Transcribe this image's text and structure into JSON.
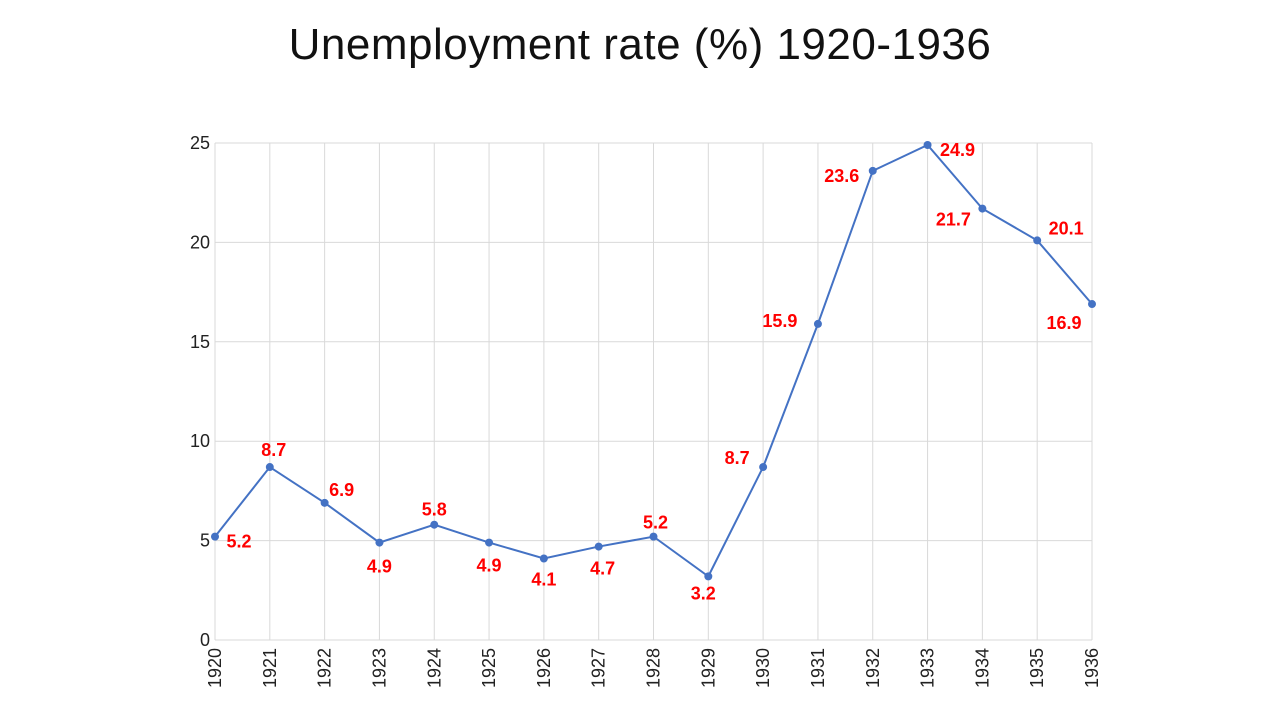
{
  "chart_data": {
    "type": "line",
    "title": "Unemployment rate (%) 1920-1936",
    "xlabel": "",
    "ylabel": "",
    "categories": [
      "1920",
      "1921",
      "1922",
      "1923",
      "1924",
      "1925",
      "1926",
      "1927",
      "1928",
      "1929",
      "1930",
      "1931",
      "1932",
      "1933",
      "1934",
      "1935",
      "1936"
    ],
    "series": [
      {
        "name": "Unemployment rate (%)",
        "values": [
          5.2,
          8.7,
          6.9,
          4.9,
          5.8,
          4.9,
          4.1,
          4.7,
          5.2,
          3.2,
          8.7,
          15.9,
          23.6,
          24.9,
          21.7,
          20.1,
          16.9
        ],
        "labels": [
          "5.2",
          "8.7",
          "6.9",
          "4.9",
          "5.8",
          "4.9",
          "4.1",
          "4.7",
          "5.2",
          "3.2",
          "8.7",
          "15.9",
          "23.6",
          "24.9",
          "21.7",
          "20.1",
          "16.9"
        ]
      }
    ],
    "ylim": [
      0,
      25
    ],
    "yticks": [
      "0",
      "5",
      "10",
      "15",
      "20",
      "25"
    ],
    "grid": true,
    "colors": {
      "line": "#4472C4",
      "label": "#FF0000",
      "grid": "#D9D9D9"
    }
  }
}
